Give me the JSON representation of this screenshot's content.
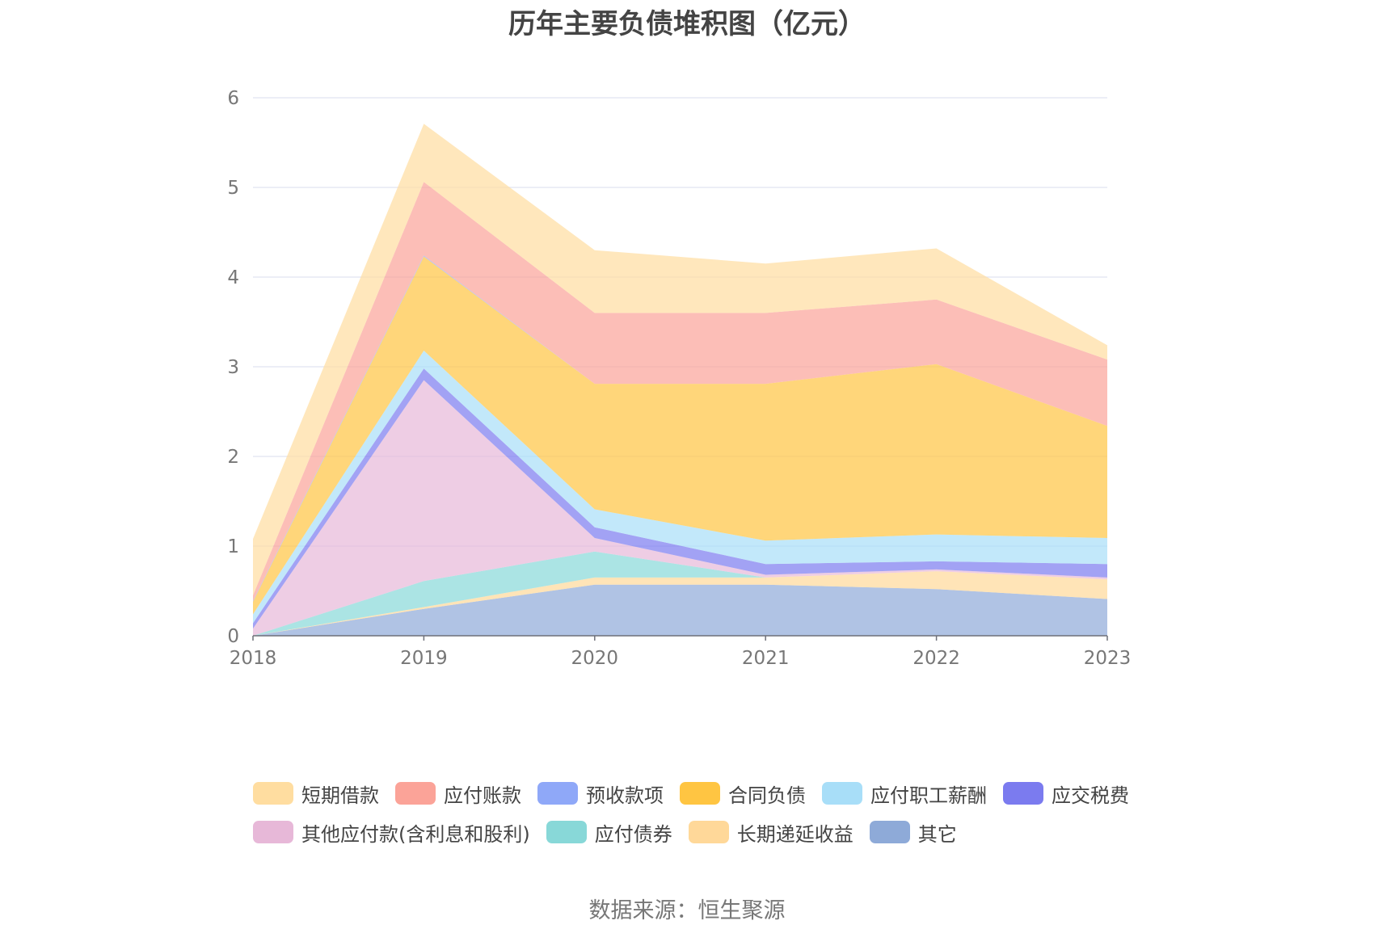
{
  "chart_data": {
    "type": "area",
    "stacked": true,
    "title": "历年主要负债堆积图（亿元）",
    "x": [
      "2018",
      "2019",
      "2020",
      "2021",
      "2022",
      "2023"
    ],
    "ylim": [
      0,
      6
    ],
    "yticks": [
      0,
      1,
      2,
      3,
      4,
      5,
      6
    ],
    "grid": true,
    "legend_position": "bottom",
    "series": [
      {
        "name": "其它",
        "color": "#8eaad8",
        "values": [
          0.0,
          0.3,
          0.57,
          0.57,
          0.52,
          0.41
        ]
      },
      {
        "name": "长期递延收益",
        "color": "#ffd899",
        "values": [
          0.0,
          0.02,
          0.08,
          0.08,
          0.2,
          0.22
        ]
      },
      {
        "name": "应付债券",
        "color": "#88d8d8",
        "values": [
          0.0,
          0.29,
          0.29,
          0.0,
          0.0,
          0.0
        ]
      },
      {
        "name": "其他应付款(含利息和股利)",
        "color": "#e7b8d8",
        "values": [
          0.08,
          2.24,
          0.15,
          0.03,
          0.02,
          0.02
        ]
      },
      {
        "name": "应交税费",
        "color": "#7b7bef",
        "values": [
          0.06,
          0.13,
          0.12,
          0.12,
          0.09,
          0.15
        ]
      },
      {
        "name": "应付职工薪酬",
        "color": "#a8def8",
        "values": [
          0.1,
          0.2,
          0.2,
          0.26,
          0.3,
          0.29
        ]
      },
      {
        "name": "合同负债",
        "color": "#ffc542",
        "values": [
          0.14,
          1.05,
          1.4,
          1.75,
          1.9,
          1.25
        ]
      },
      {
        "name": "预收款项",
        "color": "#8fa8f8",
        "values": [
          0.01,
          0.01,
          0.0,
          0.0,
          0.0,
          0.0
        ]
      },
      {
        "name": "应付账款",
        "color": "#fba398",
        "values": [
          0.06,
          0.82,
          0.79,
          0.79,
          0.72,
          0.74
        ]
      },
      {
        "name": "短期借款",
        "color": "#ffdda0",
        "values": [
          0.63,
          0.65,
          0.7,
          0.55,
          0.57,
          0.16
        ]
      }
    ],
    "legend_rows": [
      [
        "短期借款",
        "应付账款",
        "预收款项",
        "合同负债",
        "应付职工薪酬",
        "应交税费"
      ],
      [
        "其他应付款(含利息和股利)",
        "应付债券",
        "长期递延收益",
        "其它"
      ]
    ]
  },
  "source": "数据来源：恒生聚源"
}
